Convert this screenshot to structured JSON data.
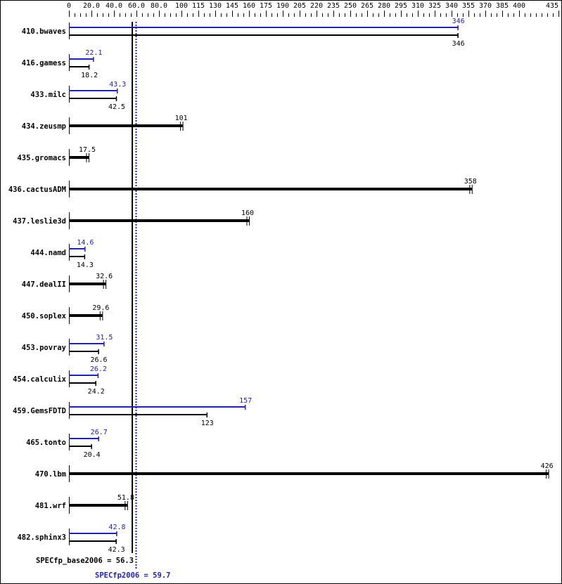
{
  "chart_data": {
    "type": "bar",
    "orientation": "horizontal",
    "axis_ticks": [
      "0",
      "20.0",
      "40.0",
      "60.0",
      "80.0",
      "100",
      "115",
      "130",
      "145",
      "160",
      "175",
      "190",
      "205",
      "220",
      "235",
      "250",
      "265",
      "280",
      "295",
      "310",
      "325",
      "340",
      "355",
      "370",
      "385",
      "400",
      "435"
    ],
    "xlim": [
      0,
      435
    ],
    "axis_position": "top",
    "colors": {
      "peak": "#2323a8",
      "base": "#000000"
    },
    "benchmarks": [
      {
        "name": "410.bwaves",
        "peak": 346,
        "base": 346,
        "peak_label": "346",
        "base_label": "346"
      },
      {
        "name": "416.gamess",
        "peak": 22.1,
        "base": 18.2,
        "peak_label": "22.1",
        "base_label": "18.2"
      },
      {
        "name": "433.milc",
        "peak": 43.3,
        "base": 42.5,
        "peak_label": "43.3",
        "base_label": "42.5"
      },
      {
        "name": "434.zeusmp",
        "base": 101,
        "base_label": "101"
      },
      {
        "name": "435.gromacs",
        "base": 17.5,
        "base_label": "17.5"
      },
      {
        "name": "436.cactusADM",
        "base": 358,
        "base_label": "358"
      },
      {
        "name": "437.leslie3d",
        "base": 160,
        "base_label": "160"
      },
      {
        "name": "444.namd",
        "peak": 14.6,
        "base": 14.3,
        "peak_label": "14.6",
        "base_label": "14.3"
      },
      {
        "name": "447.dealII",
        "base": 32.6,
        "base_label": "32.6"
      },
      {
        "name": "450.soplex",
        "base": 29.6,
        "base_label": "29.6"
      },
      {
        "name": "453.povray",
        "peak": 31.5,
        "base": 26.6,
        "peak_label": "31.5",
        "base_label": "26.6"
      },
      {
        "name": "454.calculix",
        "peak": 26.2,
        "base": 24.2,
        "peak_label": "26.2",
        "base_label": "24.2"
      },
      {
        "name": "459.GemsFDTD",
        "peak": 157,
        "base": 123,
        "peak_label": "157",
        "base_label": "123"
      },
      {
        "name": "465.tonto",
        "peak": 26.7,
        "base": 20.4,
        "peak_label": "26.7",
        "base_label": "20.4"
      },
      {
        "name": "470.lbm",
        "base": 426,
        "base_label": "426"
      },
      {
        "name": "481.wrf",
        "base": 51.8,
        "base_label": "51.8"
      },
      {
        "name": "482.sphinx3",
        "peak": 42.8,
        "base": 42.3,
        "peak_label": "42.8",
        "base_label": "42.3"
      }
    ],
    "base_mean": {
      "value": 56.3,
      "label": "SPECfp_base2006 = 56.3"
    },
    "peak_mean": {
      "value": 59.7,
      "label": "SPECfp2006 = 59.7"
    }
  }
}
